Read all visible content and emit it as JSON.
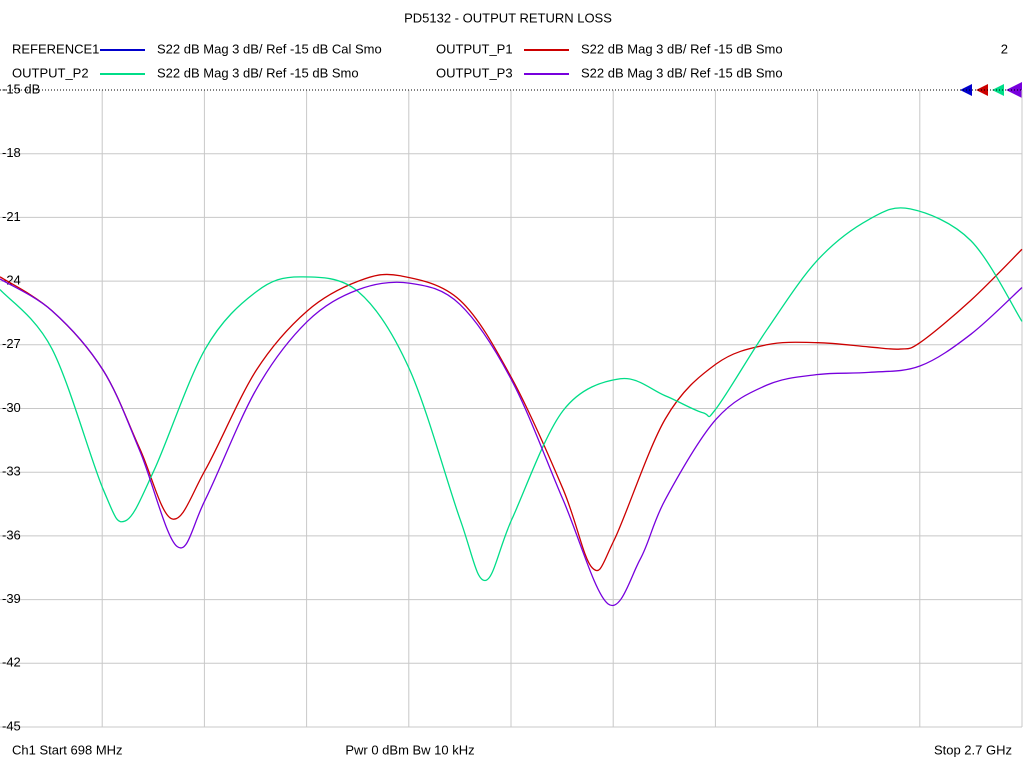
{
  "chart_data": {
    "type": "line",
    "title": "PD5132 - OUTPUT RETURN LOSS",
    "channel_number": "2",
    "ylim": [
      -45,
      -15
    ],
    "yticks": [
      {
        "value": -15,
        "label": "-15 dB"
      },
      -18,
      -21,
      -24,
      -27,
      -30,
      -33,
      -36,
      -39,
      -42,
      -45
    ],
    "xlim": [
      698,
      2700
    ],
    "grid": true,
    "footer": {
      "start": "Ch1  Start  698 MHz",
      "power": "Pwr  0 dBm  Bw  10 kHz",
      "stop": "Stop  2.7 GHz"
    },
    "series": [
      {
        "name": "REFERENCE1",
        "description": "S22  dB Mag  3 dB/ Ref -15 dB  Cal Smo",
        "color": "#0000cc",
        "x": [],
        "values": []
      },
      {
        "name": "OUTPUT_P1",
        "description": "S22  dB Mag  3 dB/ Ref -15 dB  Smo",
        "color": "#cc0000",
        "x": [
          698,
          800,
          900,
          972,
          1035,
          1100,
          1200,
          1300,
          1400,
          1482,
          1599,
          1701,
          1801,
          1858,
          1901,
          2001,
          2101,
          2200,
          2300,
          2400,
          2461,
          2500,
          2600,
          2700
        ],
        "values": [
          -23.8,
          -25.4,
          -28.2,
          -31.9,
          -35.2,
          -32.9,
          -28.2,
          -25.4,
          -24.0,
          -23.75,
          -24.9,
          -28.6,
          -33.8,
          -37.5,
          -36.2,
          -30.5,
          -27.9,
          -27.0,
          -26.9,
          -27.1,
          -27.2,
          -26.9,
          -24.9,
          -22.5
        ]
      },
      {
        "name": "OUTPUT_P2",
        "description": "S22  dB Mag  3 dB/ Ref -15 dB  Smo",
        "color": "#00dd88",
        "x": [
          698,
          800,
          900,
          943,
          1000,
          1100,
          1200,
          1286,
          1400,
          1501,
          1599,
          1648,
          1701,
          1801,
          1913,
          2001,
          2075,
          2101,
          2200,
          2300,
          2400,
          2481,
          2600,
          2700
        ],
        "values": [
          -24.4,
          -27.2,
          -33.8,
          -35.3,
          -32.9,
          -27.2,
          -24.5,
          -23.8,
          -24.5,
          -28.2,
          -35.2,
          -38.1,
          -35.2,
          -30.1,
          -28.6,
          -29.4,
          -30.2,
          -30.0,
          -26.3,
          -23.0,
          -21.1,
          -20.6,
          -22.1,
          -25.9
        ]
      },
      {
        "name": "OUTPUT_P3",
        "description": "S22  dB Mag  3 dB/ Ref -15 dB  Smo",
        "color": "#7700dd",
        "x": [
          698,
          800,
          900,
          972,
          1045,
          1100,
          1200,
          1300,
          1400,
          1501,
          1599,
          1701,
          1801,
          1889,
          1952,
          2001,
          2101,
          2200,
          2300,
          2400,
          2500,
          2600,
          2700
        ],
        "values": [
          -23.9,
          -25.4,
          -28.2,
          -32.0,
          -36.5,
          -34.3,
          -29.1,
          -25.9,
          -24.4,
          -24.1,
          -25.1,
          -28.7,
          -34.3,
          -39.2,
          -37.1,
          -34.3,
          -30.5,
          -28.9,
          -28.4,
          -28.3,
          -28.0,
          -26.5,
          -24.3
        ]
      }
    ]
  }
}
